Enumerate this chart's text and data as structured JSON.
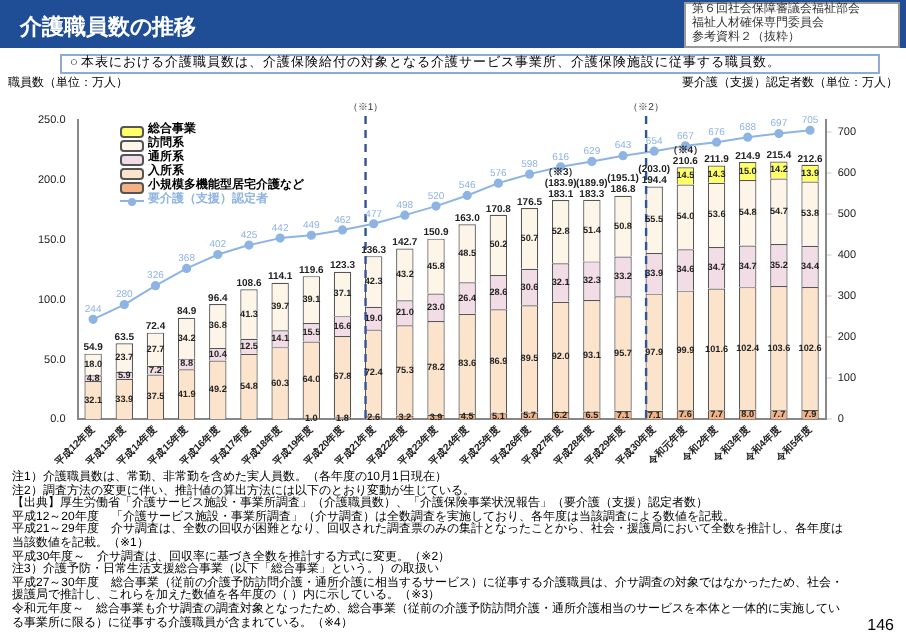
{
  "chart_data": {
    "type": "bar",
    "stacked": true,
    "title": "介護職員数の推移",
    "subtitle": "○ 本表における介護職員数は、介護保険給付の対象となる介護サービス事業所、介護保険施設に従事する職員数。",
    "ylabel": "職員数（単位：万人）",
    "y2label": "要介護（支援）認定者数（単位：万人）",
    "categories": [
      "平成12年度",
      "平成13年度",
      "平成14年度",
      "平成15年度",
      "平成16年度",
      "平成17年度",
      "平成18年度",
      "平成19年度",
      "平成20年度",
      "平成21年度",
      "平成22年度",
      "平成23年度",
      "平成24年度",
      "平成25年度",
      "平成26年度",
      "平成27年度",
      "平成28年度",
      "平成29年度",
      "平成30年度",
      "令和元年度",
      "令和2年度",
      "令和3年度",
      "令和4年度",
      "令和5年度"
    ],
    "series": [
      {
        "name": "小規模多機能型居宅介護など",
        "color": "#f4b183",
        "values": [
          null,
          null,
          null,
          null,
          null,
          null,
          null,
          1.0,
          1.8,
          2.6,
          3.2,
          3.9,
          4.5,
          5.1,
          5.7,
          6.2,
          6.5,
          7.1,
          7.1,
          7.6,
          7.7,
          8.0,
          7.7,
          7.9
        ],
        "value_labels": [
          null,
          null,
          null,
          null,
          null,
          null,
          null,
          "1.0",
          "1.8",
          "2.6",
          "3.2",
          "3.9",
          "4.5",
          "5.1",
          "5.7",
          "6.2",
          "6.5",
          "7.1",
          "7.1",
          "7.6",
          "7.7",
          "8.0",
          "7.7",
          "7.9"
        ]
      },
      {
        "name": "入所系",
        "color": "#fce4cc",
        "values": [
          32.1,
          33.9,
          37.5,
          41.9,
          49.2,
          54.8,
          60.3,
          64.0,
          67.8,
          72.4,
          75.3,
          78.2,
          83.6,
          86.9,
          89.5,
          92.0,
          93.1,
          95.7,
          97.9,
          99.9,
          101.6,
          102.4,
          103.6,
          102.6
        ],
        "value_labels": [
          "32.1",
          "33.9",
          "37.5",
          "41.9",
          "49.2",
          "54.8",
          "60.3",
          "64.0",
          "67.8",
          "72.4",
          "75.3",
          "78.2",
          "83.6",
          "86.9",
          "89.5",
          "92.0",
          "93.1",
          "95.7",
          "97.9",
          "99.9",
          "101.6",
          "102.4",
          "103.6",
          "102.6"
        ]
      },
      {
        "name": "通所系",
        "color": "#f2dde6",
        "values": [
          4.8,
          5.9,
          7.2,
          8.8,
          10.4,
          12.5,
          14.1,
          15.5,
          16.6,
          19.0,
          21.0,
          23.0,
          26.4,
          28.6,
          30.6,
          32.1,
          32.3,
          33.2,
          33.9,
          34.6,
          34.7,
          34.7,
          35.2,
          34.4
        ],
        "value_labels": [
          "4.8",
          "5.9",
          "7.2",
          "8.8",
          "10.4",
          "12.5",
          "14.1",
          "15.5",
          "16.6",
          "19.0",
          "21.0",
          "23.0",
          "26.4",
          "28.6",
          "30.6",
          "32.1",
          "32.3",
          "33.2",
          "33.9",
          "34.6",
          "34.7",
          "34.7",
          "35.2",
          "34.4"
        ]
      },
      {
        "name": "訪問系",
        "color": "#fdf5e8",
        "values": [
          18.0,
          23.7,
          27.7,
          34.2,
          36.8,
          41.3,
          39.7,
          39.1,
          37.1,
          42.3,
          43.2,
          45.8,
          48.5,
          50.2,
          50.7,
          52.8,
          51.4,
          50.8,
          55.5,
          54.0,
          53.6,
          54.8,
          54.7,
          53.8
        ],
        "value_labels": [
          "18.0",
          "23.7",
          "27.7",
          "34.2",
          "36.8",
          "41.3",
          "39.7",
          "39.1",
          "37.1",
          "42.3",
          "43.2",
          "45.8",
          "48.5",
          "50.2",
          "50.7",
          "52.8",
          "51.4",
          "50.8",
          "55.5",
          "54.0",
          "53.6",
          "54.8",
          "54.7",
          "53.8"
        ]
      },
      {
        "name": "総合事業",
        "color": "#ffff66",
        "values": [
          null,
          null,
          null,
          null,
          null,
          null,
          null,
          null,
          null,
          null,
          null,
          null,
          null,
          null,
          null,
          null,
          null,
          null,
          null,
          14.5,
          14.3,
          15.0,
          14.2,
          13.9
        ],
        "value_labels": [
          null,
          null,
          null,
          null,
          null,
          null,
          null,
          null,
          null,
          null,
          null,
          null,
          null,
          null,
          null,
          null,
          null,
          null,
          null,
          "14.5",
          "14.3",
          "15.0",
          "14.2",
          "13.9"
        ]
      },
      {
        "name": "要介護（支援）認定者",
        "type": "line",
        "axis": "y2",
        "color": "#8eb4e3",
        "marker": "circle",
        "values": [
          244,
          280,
          326,
          368,
          402,
          425,
          442,
          449,
          462,
          477,
          498,
          520,
          546,
          576,
          598,
          616,
          629,
          643,
          654,
          667,
          676,
          688,
          697,
          705
        ],
        "value_labels": [
          "244",
          "280",
          "326",
          "368",
          "402",
          "425",
          "442",
          "449",
          "462",
          "477",
          "498",
          "520",
          "546",
          "576",
          "598",
          "616",
          "629",
          "643",
          "654",
          "667",
          "676",
          "688",
          "697",
          "705"
        ]
      }
    ],
    "totals": [
      "54.9",
      "63.5",
      "72.4",
      "84.9",
      "96.4",
      "108.6",
      "114.1",
      "119.6",
      "123.3",
      "136.3",
      "142.7",
      "150.9",
      "163.0",
      "170.8",
      "176.5",
      "（※3）\n(183.9)\n183.1",
      "(189.9)\n183.3",
      "(195.1)\n186.8",
      "(203.0)\n194.4",
      "（※4）\n210.6",
      "211.9",
      "214.9",
      "215.4",
      "212.6"
    ],
    "ylim": [
      0,
      250
    ],
    "yticks": [
      {
        "value": 0,
        "label": "0.0"
      },
      {
        "value": 50,
        "label": "50.0"
      },
      {
        "value": 100,
        "label": "100.0"
      },
      {
        "value": 150,
        "label": "150.0"
      },
      {
        "value": 200,
        "label": "200.0"
      },
      {
        "value": 250,
        "label": "250.0"
      }
    ],
    "y2lim": [
      0,
      730
    ],
    "y2ticks": [
      0,
      100,
      200,
      300,
      400,
      500,
      600,
      700
    ],
    "legend": "top left",
    "ref_lines": [
      {
        "axis": "x",
        "value": "平成21年度",
        "label": "（※1）",
        "color": "#2f5597",
        "line_style": "dashed"
      },
      {
        "axis": "x",
        "value": "平成30年度",
        "label": "（※2）",
        "color": "#2f5597",
        "line_style": "dashed"
      }
    ],
    "annotations": [
      "第６回社会保障審議会福祉部会",
      "福祉人材確保専門委員会",
      "参考資料２（抜粋）",
      "注1）介護職員数は、常勤、非常勤を含めた実人員数。（各年度の10月1日現在）",
      "注2）調査方法の変更に伴い、推計値の算出方法には以下のとおり変動が生じている。",
      "【出典】厚生労働省「介護サービス施設・事業所調査」（介護職員数）、「介護保険事業状況報告」（要介護（支援）認定者数）",
      "平成12～20年度　「介護サービス施設・事業所調査」（介サ調査）は全数調査を実施しており、各年度は当該調査による数値を記載。",
      "平成21～29年度　介サ調査は、全数の回収が困難となり、回収された調査票のみの集計となったことから、社会・援護局において全数を推計し、各年度は当該数値を記載。（※1）",
      "平成30年度～　介サ調査は、回収率に基づき全数を推計する方式に変更。（※2）",
      "注3）介護予防・日常生活支援総合事業（以下「総合事業」という。）の取扱い",
      "平成27～30年度　総合事業（従前の介護予防訪問介護・通所介護に相当するサービス）に従事する介護職員は、介サ調査の対象ではなかったため、社会・援護局で推計し、これらを加えた数値を各年度の（ ）内に示している。（※3）",
      "令和元年度～　総合事業も介サ調査の調査対象となったため、総合事業（従前の介護予防訪問介護・通所介護相当のサービスを本体と一体的に実施している事業所に限る）に従事する介護職員が含まれている。（※4）",
      "146"
    ]
  }
}
